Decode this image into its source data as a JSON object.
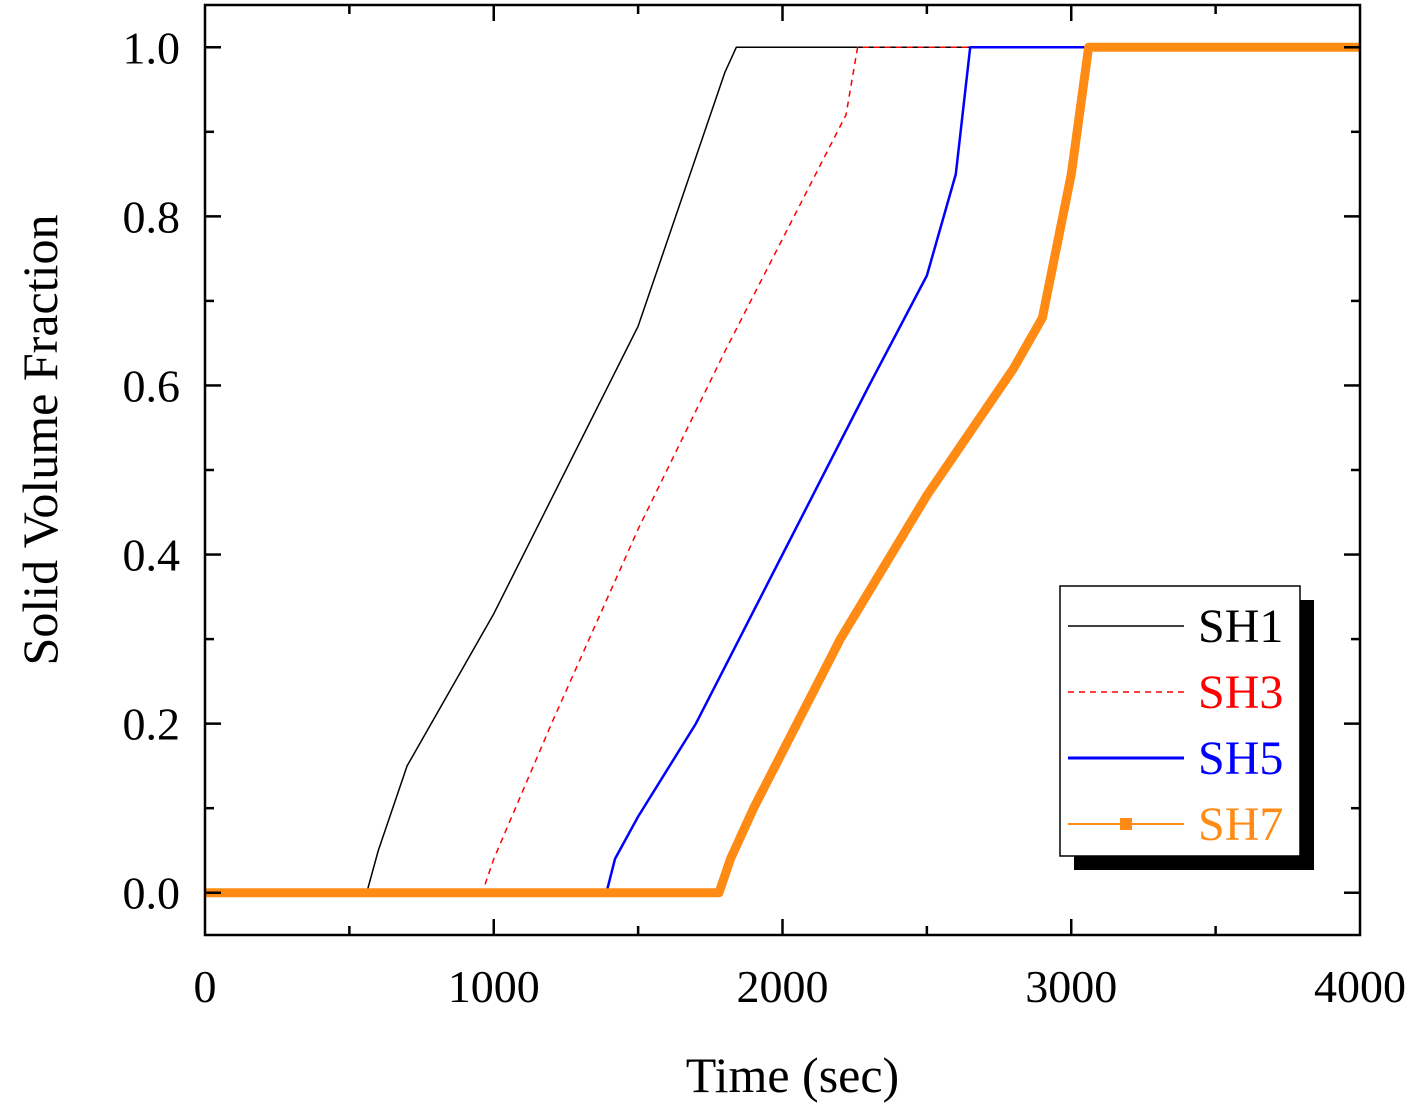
{
  "chart_data": {
    "type": "line",
    "xlabel": "Time (sec)",
    "ylabel": "Solid Volume Fraction",
    "xlim": [
      0,
      4000
    ],
    "ylim": [
      -0.05,
      1.05
    ],
    "x_ticks": [
      0,
      1000,
      2000,
      3000,
      4000
    ],
    "x_tick_labels": [
      "0",
      "1000",
      "2000",
      "3000",
      "4000"
    ],
    "x_minor_ticks": [
      500,
      1500,
      2500,
      3500
    ],
    "y_ticks": [
      0.0,
      0.2,
      0.4,
      0.6,
      0.8,
      1.0
    ],
    "y_tick_labels": [
      "0.0",
      "0.2",
      "0.4",
      "0.6",
      "0.8",
      "1.0"
    ],
    "y_minor_ticks": [
      0.1,
      0.3,
      0.5,
      0.7,
      0.9
    ],
    "grid": false,
    "legend_position": "bottom-right",
    "series": [
      {
        "name": "SH1",
        "color": "#000000",
        "style": "solid",
        "points": [
          [
            0,
            0
          ],
          [
            560,
            0
          ],
          [
            600,
            0.05
          ],
          [
            700,
            0.15
          ],
          [
            1000,
            0.33
          ],
          [
            1500,
            0.67
          ],
          [
            1800,
            0.97
          ],
          [
            1840,
            1.0
          ],
          [
            4000,
            1.0
          ]
        ]
      },
      {
        "name": "SH3",
        "color": "#ff0000",
        "style": "dashed",
        "points": [
          [
            0,
            0
          ],
          [
            960,
            0
          ],
          [
            1000,
            0.04
          ],
          [
            1200,
            0.2
          ],
          [
            1500,
            0.43
          ],
          [
            1800,
            0.64
          ],
          [
            2100,
            0.84
          ],
          [
            2220,
            0.92
          ],
          [
            2260,
            1.0
          ],
          [
            4000,
            1.0
          ]
        ]
      },
      {
        "name": "SH5",
        "color": "#0000ff",
        "style": "solid",
        "points": [
          [
            0,
            0
          ],
          [
            1390,
            0
          ],
          [
            1420,
            0.04
          ],
          [
            1500,
            0.09
          ],
          [
            1700,
            0.2
          ],
          [
            2000,
            0.4
          ],
          [
            2300,
            0.6
          ],
          [
            2500,
            0.73
          ],
          [
            2600,
            0.85
          ],
          [
            2650,
            1.0
          ],
          [
            4000,
            1.0
          ]
        ]
      },
      {
        "name": "SH7",
        "color": "#ff8a14",
        "style": "solid-square-markers",
        "points": [
          [
            0,
            0
          ],
          [
            1780,
            0
          ],
          [
            1820,
            0.04
          ],
          [
            1900,
            0.1
          ],
          [
            2200,
            0.3
          ],
          [
            2500,
            0.47
          ],
          [
            2800,
            0.62
          ],
          [
            2900,
            0.68
          ],
          [
            3000,
            0.85
          ],
          [
            3060,
            1.0
          ],
          [
            4000,
            1.0
          ]
        ]
      }
    ]
  }
}
